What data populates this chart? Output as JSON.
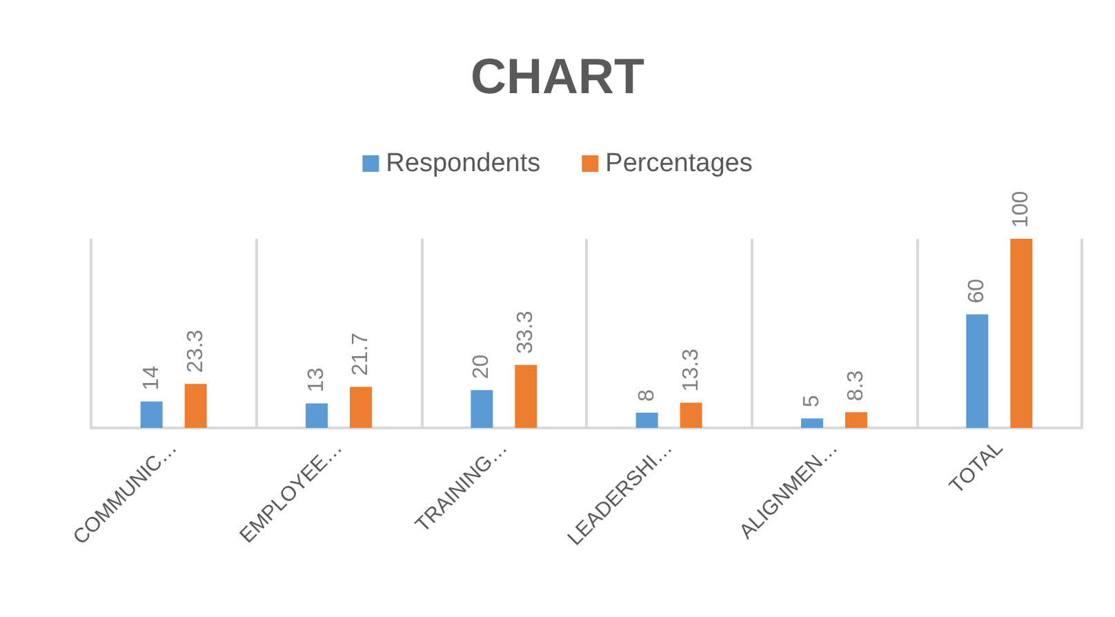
{
  "chart_data": {
    "type": "bar",
    "title": "CHART",
    "categories": [
      "COMMUNIC…",
      "EMPLOYEE…",
      "TRAINING…",
      "LEADERSHI…",
      "ALIGNMEN…",
      "TOTAL"
    ],
    "series": [
      {
        "name": "Respondents",
        "color": "#5b9bd5",
        "values": [
          14,
          13,
          20,
          8,
          5,
          60
        ]
      },
      {
        "name": "Percentages",
        "color": "#ed7d31",
        "values": [
          23.3,
          21.7,
          33.3,
          13.3,
          8.3,
          100
        ]
      }
    ],
    "data_labels": true,
    "grid": "x",
    "legend": "top"
  }
}
